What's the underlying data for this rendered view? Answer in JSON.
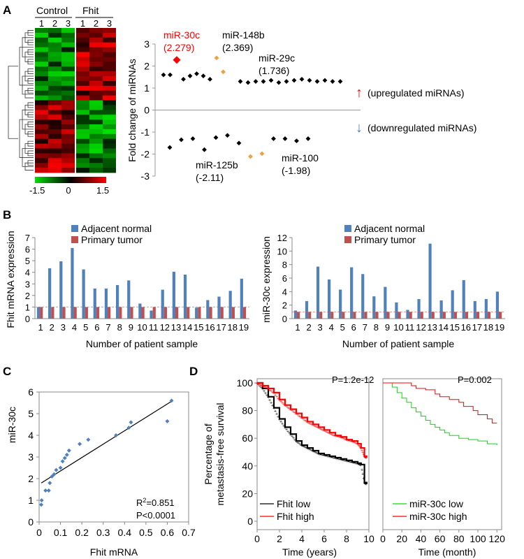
{
  "panels": {
    "A": "A",
    "B": "B",
    "C": "C",
    "D": "D"
  },
  "heatmap": {
    "group_control": "Control",
    "group_treat": "Fhit",
    "control_cols": [
      "1",
      "2",
      "3"
    ],
    "treat_cols": [
      "1",
      "2",
      "3"
    ],
    "scale_min": "-1.5",
    "scale_mid": "0",
    "scale_max": "1.5",
    "colors": {
      "low": "#00e000",
      "mid": "#000000",
      "high": "#ff0000"
    }
  },
  "chart_data": [
    {
      "id": "A-dot",
      "type": "scatter",
      "ylabel": "Fold change of miRNAs",
      "ylim": [
        -3,
        3
      ],
      "yticks": [
        "3",
        "2",
        "1",
        "0",
        "-1",
        "-2",
        "-3"
      ],
      "up_values": [
        1.6,
        1.6,
        2.279,
        1.4,
        1.55,
        1.65,
        1.55,
        1.4,
        2.369,
        1.736,
        1.3,
        1.25,
        1.3,
        1.3,
        1.35,
        1.25,
        1.3,
        1.35,
        1.4,
        1.35,
        1.3,
        1.35,
        1.3,
        1.3
      ],
      "down_values": [
        -1.7,
        -1.35,
        -1.3,
        -1.8,
        -1.25,
        -1.15,
        -1.5,
        -2.11,
        -1.98,
        -1.3,
        -1.3,
        -1.4,
        -1.3
      ],
      "annotations": [
        {
          "name": "miR-30c",
          "value_text": "(2.279)",
          "color": "#ff0000"
        },
        {
          "name": "miR-148b",
          "value_text": "(2.369)",
          "color": "#000000"
        },
        {
          "name": "miR-29c",
          "value_text": "(1.736)",
          "color": "#000000"
        },
        {
          "name": "miR-125b",
          "value_text": "(-2.11)",
          "color": "#000000"
        },
        {
          "name": "miR-100",
          "value_text": "(-1.98)",
          "color": "#000000"
        }
      ],
      "up_label": "(upregulated miRNAs)",
      "down_label": "(downregulated miRNAs)",
      "colors": {
        "point": "#000000",
        "highlight": "#f0a040",
        "miR30c": "#ff0000",
        "up_arrow": "#ff0000",
        "down_arrow": "#4a7fc0"
      }
    },
    {
      "id": "B-left",
      "type": "bar",
      "ylabel": "Fhit mRNA expression",
      "xlabel": "Number of patient sample",
      "ylim": [
        0,
        7
      ],
      "yticks": [
        "0",
        "1",
        "2",
        "3",
        "4",
        "5",
        "6",
        "7"
      ],
      "categories": [
        "1",
        "2",
        "3",
        "4",
        "5",
        "6",
        "7",
        "8",
        "9",
        "10",
        "11",
        "12",
        "13",
        "14",
        "15",
        "16",
        "17",
        "18",
        "19"
      ],
      "series": [
        {
          "name": "Adjacent normal",
          "color": "#4f81bd",
          "values": [
            1,
            4.35,
            4.95,
            6.1,
            4.25,
            2.6,
            2.6,
            2.9,
            3.3,
            1.3,
            0.7,
            2.5,
            4.05,
            3.8,
            0.95,
            1.6,
            1.9,
            2.4,
            3.45
          ]
        },
        {
          "name": "Primary tumor",
          "color": "#c0504d",
          "values": [
            1,
            1,
            1,
            1,
            1,
            1,
            1,
            1,
            1,
            1,
            1,
            1,
            1,
            1,
            1,
            1,
            1,
            1,
            1
          ]
        }
      ]
    },
    {
      "id": "B-right",
      "type": "bar",
      "ylabel": "miR-30c expression",
      "xlabel": "Number of patient sample",
      "ylim": [
        0,
        12
      ],
      "yticks": [
        "0",
        "2",
        "4",
        "6",
        "8",
        "10",
        "12"
      ],
      "categories": [
        "1",
        "2",
        "3",
        "4",
        "5",
        "6",
        "7",
        "8",
        "9",
        "10",
        "11",
        "12",
        "13",
        "14",
        "15",
        "16",
        "17",
        "18",
        "19"
      ],
      "series": [
        {
          "name": "Adjacent normal",
          "color": "#4f81bd",
          "values": [
            1.2,
            2.6,
            7.7,
            5.8,
            4.3,
            7.6,
            6.6,
            3.3,
            4.7,
            2.4,
            1.3,
            2.9,
            11.1,
            2.7,
            4.2,
            5.7,
            2.6,
            2.9,
            4.0
          ]
        },
        {
          "name": "Primary tumor",
          "color": "#c0504d",
          "values": [
            1,
            1,
            1,
            1,
            1,
            1,
            1,
            1,
            1,
            1,
            1,
            1,
            1,
            1,
            1,
            1,
            1,
            1,
            1
          ]
        }
      ]
    },
    {
      "id": "C",
      "type": "scatter",
      "ylabel": "miR-30c",
      "xlabel": "Fhit  mRNA",
      "xlim": [
        0,
        0.7
      ],
      "ylim": [
        0,
        6
      ],
      "xticks": [
        "0",
        "0.1",
        "0.2",
        "0.3",
        "0.4",
        "0.5",
        "0.6",
        "0.7"
      ],
      "yticks": [
        "0",
        "1",
        "2",
        "3",
        "4",
        "5",
        "6"
      ],
      "r2_prefix": "R",
      "r2_sup": "2",
      "r2_value": "=0.851",
      "p_text": "P<0.0001",
      "points": [
        [
          0.01,
          0.8
        ],
        [
          0.012,
          1.0
        ],
        [
          0.03,
          1.45
        ],
        [
          0.045,
          1.45
        ],
        [
          0.05,
          1.8
        ],
        [
          0.06,
          2.1
        ],
        [
          0.07,
          2.2
        ],
        [
          0.08,
          2.4
        ],
        [
          0.1,
          2.5
        ],
        [
          0.11,
          2.8
        ],
        [
          0.12,
          2.95
        ],
        [
          0.13,
          3.1
        ],
        [
          0.14,
          3.3
        ],
        [
          0.19,
          3.6
        ],
        [
          0.23,
          3.8
        ],
        [
          0.36,
          4.0
        ],
        [
          0.42,
          4.35
        ],
        [
          0.43,
          4.6
        ],
        [
          0.6,
          4.65
        ],
        [
          0.62,
          5.6
        ]
      ],
      "fit": [
        [
          0.01,
          1.8
        ],
        [
          0.625,
          5.6
        ]
      ],
      "colors": {
        "point": "#4f81bd",
        "line": "#000000"
      }
    },
    {
      "id": "D-left",
      "type": "line",
      "ylabel": "Percentage of metastasis-free survival",
      "ylabel_lines": [
        "Percentage of",
        "metastasis-free survival"
      ],
      "xlabel": "Time (years)",
      "xlim": [
        0,
        10
      ],
      "ylim": [
        0,
        100
      ],
      "xticks": [
        "0",
        "2",
        "4",
        "6",
        "8",
        "10"
      ],
      "yticks": [
        "0",
        "20",
        "40",
        "60",
        "80",
        "100"
      ],
      "p_text": "P=1.2e-12",
      "series": [
        {
          "name": "Fhit low",
          "color": "#000000",
          "x": [
            0,
            0.5,
            1,
            1.5,
            2,
            2.5,
            3,
            3.5,
            4,
            4.5,
            5,
            5.5,
            6,
            6.5,
            7,
            7.5,
            8,
            8.5,
            9,
            9.3,
            9.6,
            9.8
          ],
          "y": [
            100,
            96,
            90,
            82,
            74,
            68,
            63,
            58,
            55,
            53,
            51,
            49,
            48,
            47,
            46,
            45,
            44,
            43,
            42,
            41,
            28,
            27
          ]
        },
        {
          "name": "Fhit high",
          "color": "#ff0000",
          "x": [
            0,
            0.5,
            1,
            1.5,
            2,
            2.5,
            3,
            3.5,
            4,
            4.5,
            5,
            5.5,
            6,
            6.5,
            7,
            7.5,
            8,
            8.5,
            9,
            9.3,
            9.6,
            9.8
          ],
          "y": [
            100,
            98,
            96,
            93,
            88,
            84,
            81,
            78,
            75,
            72,
            70,
            68,
            66,
            64,
            62,
            61,
            59,
            58,
            56,
            53,
            47,
            46
          ]
        }
      ]
    },
    {
      "id": "D-right",
      "type": "line",
      "xlabel": "Time (month)",
      "xlim": [
        0,
        125
      ],
      "ylim": [
        0,
        100
      ],
      "xticks": [
        "0",
        "20",
        "40",
        "60",
        "80",
        "100",
        "120"
      ],
      "p_text": "P=0.002",
      "series": [
        {
          "name": "miR-30c low",
          "color": "#00e000",
          "x": [
            0,
            10,
            15,
            20,
            25,
            30,
            35,
            40,
            45,
            50,
            55,
            60,
            65,
            70,
            80,
            90,
            100,
            110,
            120
          ],
          "y": [
            100,
            97,
            93,
            89,
            86,
            82,
            79,
            76,
            73,
            70,
            68,
            66,
            64,
            62,
            60,
            59,
            58,
            56,
            55
          ]
        },
        {
          "name": "miR-30c high",
          "color": "#ff0000",
          "x": [
            0,
            20,
            30,
            35,
            45,
            55,
            60,
            70,
            80,
            85,
            95,
            100,
            110,
            115,
            120
          ],
          "y": [
            100,
            100,
            98,
            96,
            95,
            92,
            90,
            88,
            86,
            83,
            80,
            77,
            74,
            71,
            71
          ]
        }
      ]
    }
  ]
}
